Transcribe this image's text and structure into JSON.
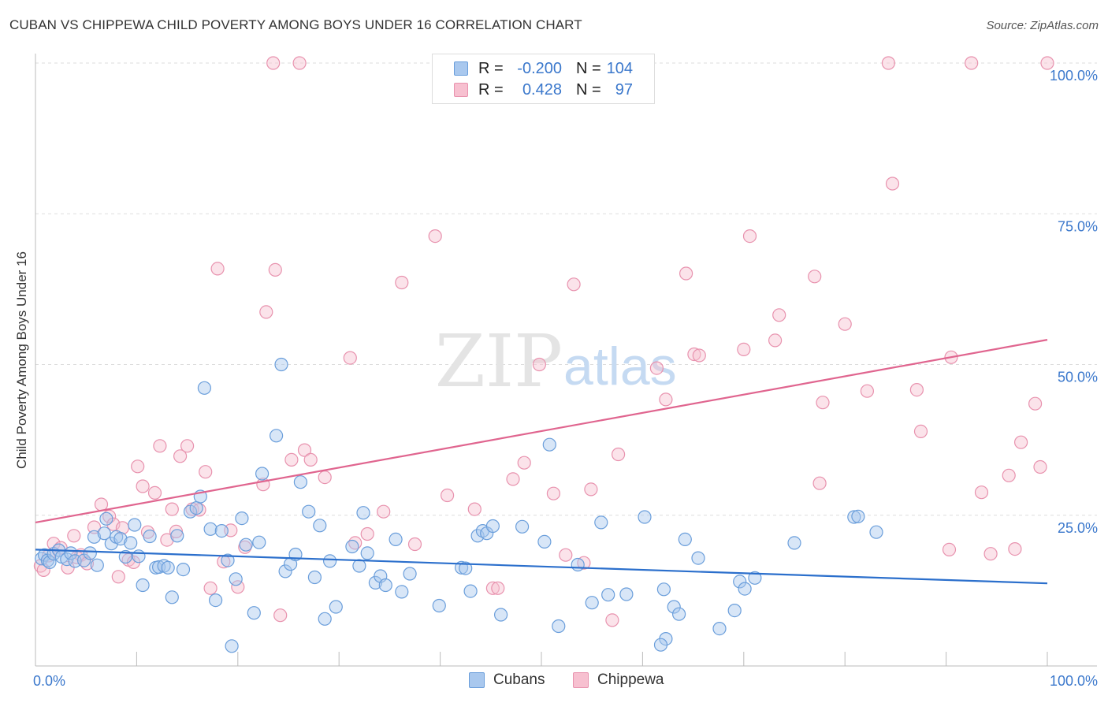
{
  "header": {
    "title": "CUBAN VS CHIPPEWA CHILD POVERTY AMONG BOYS UNDER 16 CORRELATION CHART",
    "source": "Source: ZipAtlas.com"
  },
  "watermark": {
    "zip": "ZIP",
    "atlas": "atlas"
  },
  "legend": {
    "rows": [
      {
        "r_label": "R =",
        "r_value": "-0.200",
        "n_label": "N =",
        "n_value": "104"
      },
      {
        "r_label": "R =",
        "r_value": "0.428",
        "n_label": "N =",
        "n_value": "97"
      }
    ]
  },
  "bottom_legend": {
    "cubans": "Cubans",
    "chippewa": "Chippewa"
  },
  "colors": {
    "cubans_fill": "#a9c8ee",
    "cubans_stroke": "#6a9edb",
    "cubans_line": "#2b6fcc",
    "chippewa_fill": "#f7c0d0",
    "chippewa_stroke": "#e892ae",
    "chippewa_line": "#e0658f",
    "tick_label": "#3b78cc",
    "grid": "#dddddd"
  },
  "chart_data": {
    "type": "scatter",
    "title": "CUBAN VS CHIPPEWA CHILD POVERTY AMONG BOYS UNDER 16 CORRELATION CHART",
    "xlabel": "",
    "ylabel": "Child Poverty Among Boys Under 16",
    "x_tick_labels": [
      "0.0%",
      "100.0%"
    ],
    "y_tick_labels": [
      "25.0%",
      "50.0%",
      "75.0%",
      "100.0%"
    ],
    "xlim": [
      0,
      100
    ],
    "ylim": [
      0,
      100
    ],
    "grid": "horizontal dashed",
    "legend_placement": "top-center",
    "series": [
      {
        "name": "Cubans",
        "r": -0.2,
        "n": 104,
        "trend": {
          "x": [
            0,
            100
          ],
          "y": [
            19.3,
            13.7
          ]
        },
        "points": [
          [
            0.6,
            17.8
          ],
          [
            0.9,
            18.4
          ],
          [
            1.2,
            17.5
          ],
          [
            1.4,
            17.2
          ],
          [
            1.8,
            18.6
          ],
          [
            2.3,
            19.2
          ],
          [
            2.6,
            18.1
          ],
          [
            3.1,
            17.7
          ],
          [
            3.5,
            18.7
          ],
          [
            3.9,
            17.4
          ],
          [
            4.8,
            17.5
          ],
          [
            5.4,
            18.7
          ],
          [
            5.8,
            21.4
          ],
          [
            6.1,
            16.7
          ],
          [
            6.8,
            22.0
          ],
          [
            7.0,
            24.4
          ],
          [
            7.5,
            20.3
          ],
          [
            8.0,
            21.4
          ],
          [
            8.4,
            21.1
          ],
          [
            8.9,
            18.1
          ],
          [
            9.4,
            20.4
          ],
          [
            9.8,
            23.4
          ],
          [
            10.2,
            18.2
          ],
          [
            10.6,
            13.4
          ],
          [
            11.3,
            21.5
          ],
          [
            11.9,
            16.3
          ],
          [
            12.2,
            16.4
          ],
          [
            12.7,
            16.6
          ],
          [
            13.1,
            16.3
          ],
          [
            13.5,
            11.4
          ],
          [
            14.0,
            21.6
          ],
          [
            14.6,
            16.0
          ],
          [
            15.3,
            25.6
          ],
          [
            15.9,
            26.2
          ],
          [
            16.3,
            28.1
          ],
          [
            16.7,
            46.1
          ],
          [
            17.3,
            22.7
          ],
          [
            17.8,
            10.9
          ],
          [
            18.4,
            22.4
          ],
          [
            19.0,
            17.5
          ],
          [
            19.4,
            3.3
          ],
          [
            19.8,
            14.4
          ],
          [
            20.4,
            24.5
          ],
          [
            20.8,
            20.1
          ],
          [
            21.6,
            8.8
          ],
          [
            22.1,
            20.5
          ],
          [
            22.4,
            31.9
          ],
          [
            23.8,
            38.2
          ],
          [
            24.3,
            50.0
          ],
          [
            24.7,
            15.7
          ],
          [
            25.2,
            16.9
          ],
          [
            25.7,
            18.5
          ],
          [
            26.2,
            30.5
          ],
          [
            27.0,
            25.6
          ],
          [
            27.6,
            14.7
          ],
          [
            28.1,
            23.3
          ],
          [
            28.6,
            7.8
          ],
          [
            29.1,
            17.4
          ],
          [
            29.7,
            9.8
          ],
          [
            31.3,
            19.8
          ],
          [
            32.0,
            16.6
          ],
          [
            32.4,
            25.4
          ],
          [
            32.8,
            18.7
          ],
          [
            33.6,
            13.8
          ],
          [
            34.1,
            14.9
          ],
          [
            34.6,
            13.4
          ],
          [
            35.6,
            21.0
          ],
          [
            36.2,
            12.3
          ],
          [
            37.0,
            15.3
          ],
          [
            39.9,
            10.0
          ],
          [
            42.1,
            16.3
          ],
          [
            42.5,
            16.2
          ],
          [
            43.0,
            12.4
          ],
          [
            43.7,
            21.6
          ],
          [
            44.2,
            22.4
          ],
          [
            44.6,
            22.0
          ],
          [
            45.2,
            23.2
          ],
          [
            46.0,
            8.5
          ],
          [
            48.1,
            23.1
          ],
          [
            50.3,
            20.6
          ],
          [
            50.8,
            36.7
          ],
          [
            51.7,
            6.6
          ],
          [
            53.6,
            16.8
          ],
          [
            55.0,
            10.5
          ],
          [
            55.9,
            23.8
          ],
          [
            56.6,
            11.8
          ],
          [
            58.4,
            11.9
          ],
          [
            60.2,
            24.7
          ],
          [
            62.1,
            12.7
          ],
          [
            63.1,
            9.8
          ],
          [
            63.6,
            8.6
          ],
          [
            64.2,
            21.0
          ],
          [
            65.5,
            17.9
          ],
          [
            67.6,
            6.2
          ],
          [
            69.1,
            9.2
          ],
          [
            69.6,
            14.0
          ],
          [
            70.1,
            12.8
          ],
          [
            71.1,
            14.6
          ],
          [
            75.0,
            20.4
          ],
          [
            80.9,
            24.7
          ],
          [
            81.3,
            24.8
          ],
          [
            83.1,
            22.2
          ],
          [
            62.3,
            4.5
          ],
          [
            61.8,
            3.5
          ]
        ]
      },
      {
        "name": "Chippewa",
        "r": 0.428,
        "n": 97,
        "trend": {
          "x": [
            0,
            100
          ],
          "y": [
            23.8,
            54.1
          ]
        },
        "points": [
          [
            0.5,
            16.6
          ],
          [
            0.8,
            15.9
          ],
          [
            1.3,
            18.3
          ],
          [
            1.8,
            20.3
          ],
          [
            2.5,
            19.6
          ],
          [
            3.2,
            16.3
          ],
          [
            3.8,
            21.6
          ],
          [
            4.1,
            18.0
          ],
          [
            4.5,
            18.4
          ],
          [
            5.1,
            17.0
          ],
          [
            5.8,
            23.0
          ],
          [
            6.5,
            26.8
          ],
          [
            7.3,
            24.8
          ],
          [
            7.7,
            23.5
          ],
          [
            8.2,
            14.8
          ],
          [
            8.6,
            22.9
          ],
          [
            9.2,
            17.6
          ],
          [
            9.7,
            17.2
          ],
          [
            10.1,
            33.1
          ],
          [
            10.6,
            29.8
          ],
          [
            11.1,
            22.2
          ],
          [
            11.8,
            28.7
          ],
          [
            12.3,
            36.5
          ],
          [
            13.0,
            20.9
          ],
          [
            13.5,
            26.0
          ],
          [
            13.9,
            22.3
          ],
          [
            14.3,
            34.8
          ],
          [
            15.0,
            36.5
          ],
          [
            15.5,
            26.0
          ],
          [
            16.2,
            25.9
          ],
          [
            16.8,
            32.2
          ],
          [
            17.3,
            12.9
          ],
          [
            18.0,
            65.9
          ],
          [
            18.6,
            17.3
          ],
          [
            19.3,
            22.5
          ],
          [
            20.0,
            13.1
          ],
          [
            20.7,
            19.7
          ],
          [
            22.5,
            30.1
          ],
          [
            22.8,
            58.7
          ],
          [
            23.5,
            100.0
          ],
          [
            23.7,
            65.7
          ],
          [
            24.2,
            8.4
          ],
          [
            25.3,
            34.2
          ],
          [
            26.1,
            100.0
          ],
          [
            26.6,
            35.8
          ],
          [
            27.2,
            34.2
          ],
          [
            28.6,
            31.3
          ],
          [
            31.1,
            51.1
          ],
          [
            31.6,
            20.4
          ],
          [
            32.8,
            21.9
          ],
          [
            34.4,
            25.6
          ],
          [
            36.2,
            63.6
          ],
          [
            37.5,
            20.2
          ],
          [
            39.5,
            71.3
          ],
          [
            40.7,
            28.3
          ],
          [
            43.4,
            26.0
          ],
          [
            45.2,
            12.9
          ],
          [
            45.7,
            12.9
          ],
          [
            47.2,
            31.0
          ],
          [
            48.3,
            33.7
          ],
          [
            49.8,
            50.0
          ],
          [
            51.2,
            28.6
          ],
          [
            52.4,
            18.4
          ],
          [
            53.2,
            63.3
          ],
          [
            54.2,
            17.1
          ],
          [
            54.9,
            29.3
          ],
          [
            57.0,
            7.6
          ],
          [
            57.6,
            35.1
          ],
          [
            61.4,
            49.4
          ],
          [
            62.3,
            44.2
          ],
          [
            64.3,
            65.1
          ],
          [
            65.1,
            51.7
          ],
          [
            65.6,
            51.5
          ],
          [
            70.0,
            52.5
          ],
          [
            70.6,
            71.3
          ],
          [
            73.1,
            54.0
          ],
          [
            73.5,
            58.2
          ],
          [
            77.0,
            64.6
          ],
          [
            77.5,
            30.3
          ],
          [
            77.8,
            43.7
          ],
          [
            80.0,
            56.7
          ],
          [
            82.2,
            45.6
          ],
          [
            84.3,
            100.0
          ],
          [
            84.7,
            80.0
          ],
          [
            87.1,
            45.8
          ],
          [
            87.5,
            38.9
          ],
          [
            90.3,
            19.3
          ],
          [
            90.5,
            51.2
          ],
          [
            92.5,
            100.0
          ],
          [
            93.5,
            28.8
          ],
          [
            94.4,
            18.6
          ],
          [
            96.2,
            31.6
          ],
          [
            96.8,
            19.4
          ],
          [
            97.4,
            37.1
          ],
          [
            98.8,
            43.5
          ],
          [
            99.3,
            33.0
          ],
          [
            100.0,
            100.0
          ]
        ]
      }
    ]
  }
}
